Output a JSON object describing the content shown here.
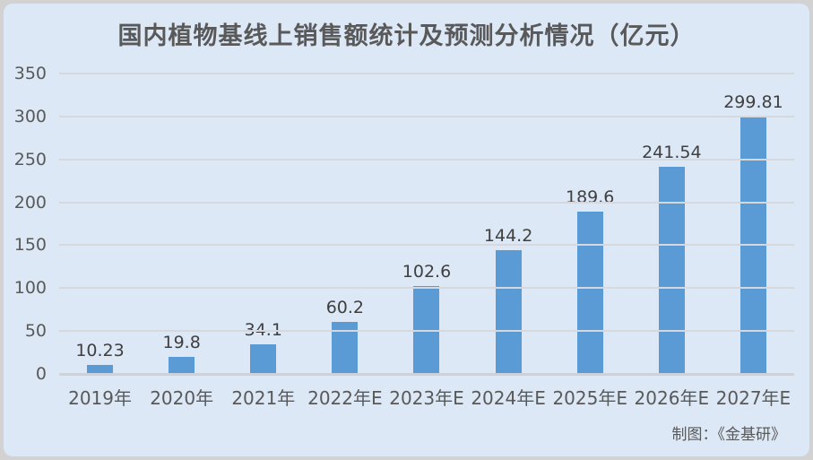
{
  "chart_data": {
    "type": "bar",
    "title": "国内植物基线上销售额统计及预测分析情况（亿元）",
    "categories": [
      "2019年",
      "2020年",
      "2021年",
      "2022年E",
      "2023年E",
      "2024年E",
      "2025年E",
      "2026年E",
      "2027年E"
    ],
    "values": [
      10.23,
      19.8,
      34.1,
      60.2,
      102.6,
      144.2,
      189.6,
      241.54,
      299.81
    ],
    "value_labels": [
      "10.23",
      "19.8",
      "34.1",
      "60.2",
      "102.6",
      "144.2",
      "189.6",
      "241.54",
      "299.81"
    ],
    "xlabel": "",
    "ylabel": "",
    "ylim": [
      0,
      350
    ],
    "yticks": [
      0,
      50,
      100,
      150,
      200,
      250,
      300,
      350
    ],
    "grid": "horizontal",
    "legend_position": "none",
    "bar_color": "#5b9bd5",
    "background_color": "#dce8f5",
    "gridline_color": "#d5d9dd",
    "title_color": "#595959",
    "label_color": "#3f3f3f",
    "axis_label_color": "#595959"
  },
  "footer": {
    "credit": "制图：《金基研》"
  }
}
